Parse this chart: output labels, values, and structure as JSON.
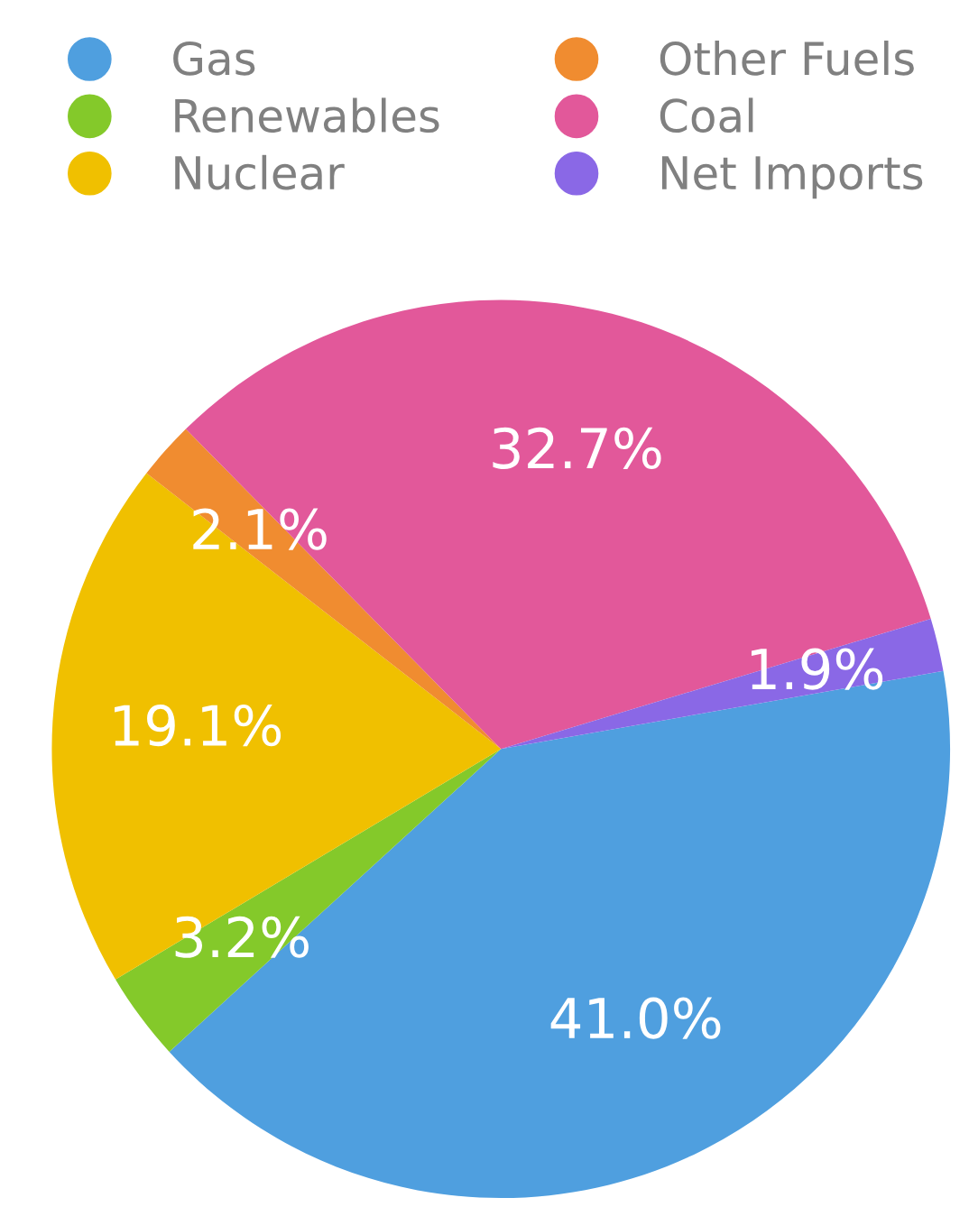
{
  "chart_data": {
    "type": "pie",
    "categories": [
      "Gas",
      "Renewables",
      "Nuclear",
      "Other Fuels",
      "Coal",
      "Net Imports"
    ],
    "values": [
      41.0,
      3.2,
      19.1,
      2.1,
      32.7,
      1.9
    ],
    "value_labels": [
      "41.0%",
      "3.2%",
      "19.1%",
      "2.1%",
      "32.7%",
      "1.9%"
    ],
    "colors": [
      "#4f9fdf",
      "#84c92a",
      "#f0c000",
      "#f08c30",
      "#e2589a",
      "#8a68e6"
    ],
    "legend": "top"
  }
}
